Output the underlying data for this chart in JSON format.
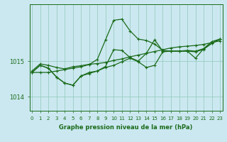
{
  "bg_color": "#cbe8f0",
  "line_color": "#1a6b1a",
  "grid_color": "#90c8b8",
  "title": "Graphe pression niveau de la mer (hPa)",
  "yticks": [
    1014,
    1015
  ],
  "ylim": [
    1013.6,
    1016.6
  ],
  "xlim": [
    -0.3,
    23.3
  ],
  "series": [
    [
      1014.72,
      1014.92,
      1014.88,
      1014.82,
      1014.78,
      1014.84,
      1014.87,
      1014.91,
      1014.93,
      1014.96,
      1015.02,
      1015.06,
      1015.12,
      1015.17,
      1015.22,
      1015.27,
      1015.32,
      1015.37,
      1015.4,
      1015.42,
      1015.44,
      1015.47,
      1015.52,
      1015.57
    ],
    [
      1014.68,
      1014.88,
      1014.8,
      1014.55,
      1014.38,
      1014.32,
      1014.58,
      1014.68,
      1014.72,
      1014.82,
      1014.88,
      1014.98,
      1015.08,
      1014.98,
      1014.82,
      1014.88,
      1015.26,
      1015.28,
      1015.28,
      1015.3,
      1015.28,
      1015.35,
      1015.55,
      1015.62
    ],
    [
      1014.68,
      1014.68,
      1014.68,
      1014.72,
      1014.76,
      1014.8,
      1014.84,
      1014.9,
      1015.05,
      1015.6,
      1016.15,
      1016.18,
      1015.85,
      1015.62,
      1015.58,
      1015.48,
      1015.3,
      1015.28,
      1015.28,
      1015.28,
      1015.26,
      1015.33,
      1015.5,
      1015.62
    ],
    [
      1014.68,
      1014.88,
      1014.8,
      1014.55,
      1014.38,
      1014.32,
      1014.58,
      1014.65,
      1014.72,
      1014.85,
      1015.32,
      1015.3,
      1015.1,
      1015.0,
      1015.22,
      1015.6,
      1015.28,
      1015.28,
      1015.28,
      1015.28,
      1015.08,
      1015.35,
      1015.5,
      1015.62
    ]
  ],
  "xlabel_ticks": [
    0,
    1,
    2,
    3,
    4,
    5,
    6,
    7,
    8,
    9,
    10,
    11,
    12,
    13,
    14,
    15,
    16,
    17,
    18,
    19,
    20,
    21,
    22,
    23
  ],
  "marker": "+",
  "markersize": 3.5,
  "linewidth": 0.9,
  "tick_fontsize": 5.0,
  "ytick_fontsize": 6.0,
  "label_fontsize": 6.0
}
